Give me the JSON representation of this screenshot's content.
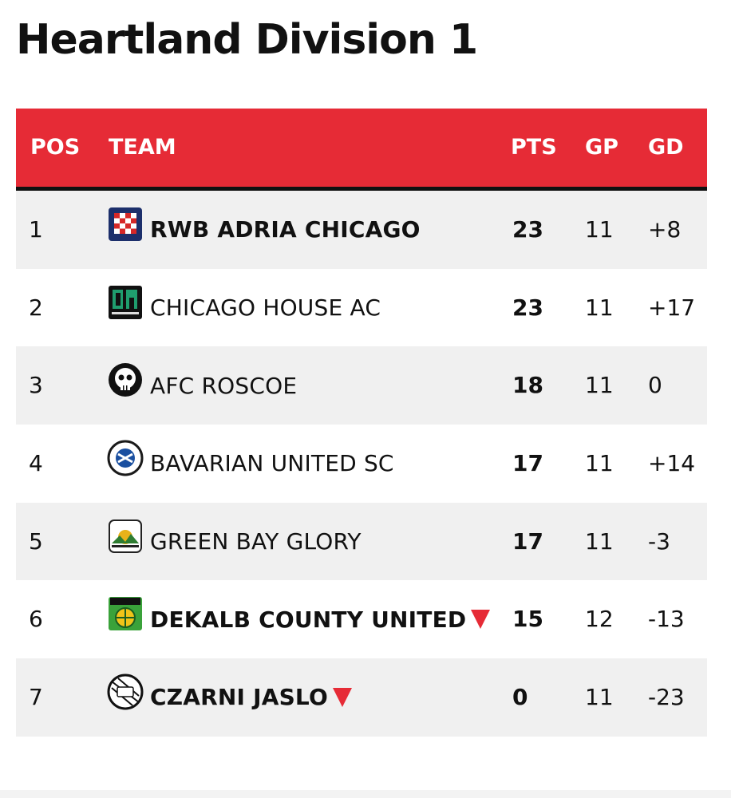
{
  "title": "Heartland Division 1",
  "columns": {
    "pos": "POS",
    "team": "TEAM",
    "pts": "PTS",
    "gp": "GP",
    "gd": "GD"
  },
  "rows": [
    {
      "pos": "1",
      "team": "RWB ADRIA CHICAGO",
      "pts": "23",
      "gp": "11",
      "gd": "+8",
      "bold": true,
      "relegation": false,
      "logo": "rwb-adria-logo",
      "logo_color": "#d62828"
    },
    {
      "pos": "2",
      "team": "CHICAGO HOUSE AC",
      "pts": "23",
      "gp": "11",
      "gd": "+17",
      "bold": false,
      "relegation": false,
      "logo": "chicago-house-logo",
      "logo_color": "#1f9e6e"
    },
    {
      "pos": "3",
      "team": "AFC ROSCOE",
      "pts": "18",
      "gp": "11",
      "gd": "0",
      "bold": false,
      "relegation": false,
      "logo": "afc-roscoe-logo",
      "logo_color": "#111111"
    },
    {
      "pos": "4",
      "team": "BAVARIAN UNITED SC",
      "pts": "17",
      "gp": "11",
      "gd": "+14",
      "bold": false,
      "relegation": false,
      "logo": "bavarian-united-logo",
      "logo_color": "#1a4fa0"
    },
    {
      "pos": "5",
      "team": "GREEN BAY GLORY",
      "pts": "17",
      "gp": "11",
      "gd": "-3",
      "bold": false,
      "relegation": false,
      "logo": "green-bay-glory-logo",
      "logo_color": "#2f7d32"
    },
    {
      "pos": "6",
      "team": "DEKALB COUNTY UNITED",
      "pts": "15",
      "gp": "12",
      "gd": "-13",
      "bold": true,
      "relegation": true,
      "logo": "dekalb-county-logo",
      "logo_color": "#3aa23a"
    },
    {
      "pos": "7",
      "team": "CZARNI JASLO",
      "pts": "0",
      "gp": "11",
      "gd": "-23",
      "bold": true,
      "relegation": true,
      "logo": "czarni-jaslo-logo",
      "logo_color": "#111111"
    }
  ],
  "colors": {
    "header": "#e62b36",
    "row_alt": "#f0f0f0",
    "relegation_marker": "#e62b36"
  }
}
